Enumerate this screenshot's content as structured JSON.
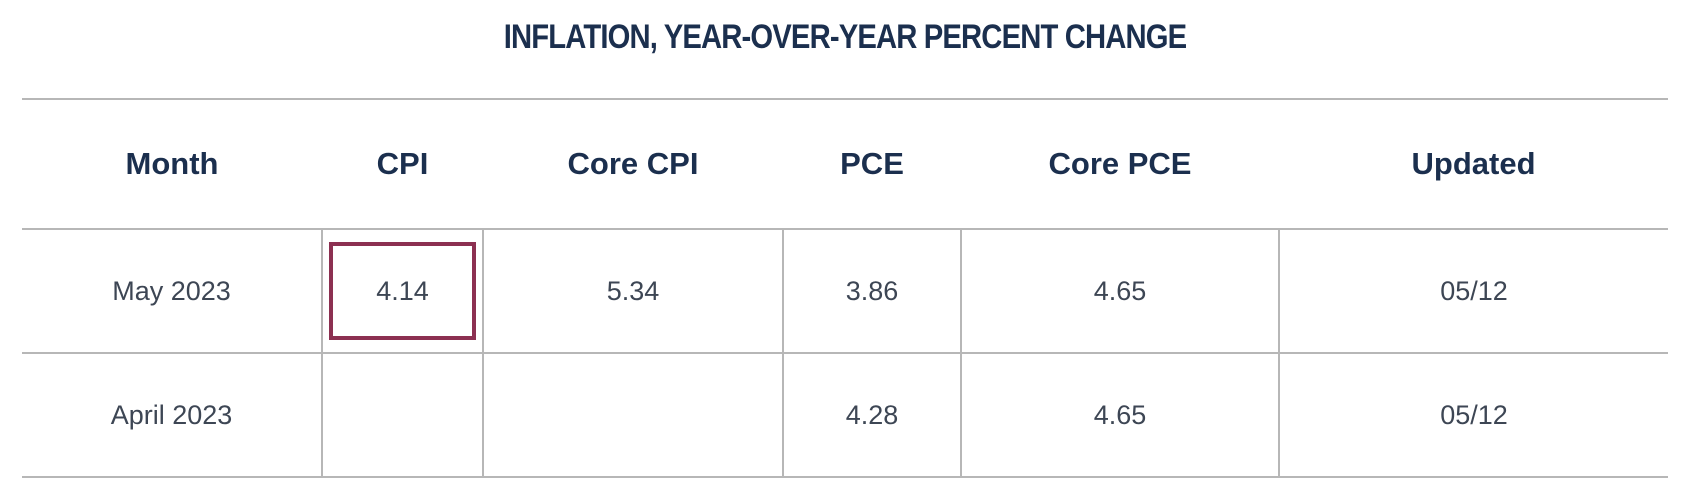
{
  "title": "INFLATION, YEAR-OVER-YEAR PERCENT CHANGE",
  "colors": {
    "heading": "#1b2f4e",
    "text": "#3d4654",
    "rule": "#b7b7b7",
    "highlight": "#8c3051"
  },
  "table": {
    "headers": [
      "Month",
      "CPI",
      "Core CPI",
      "PCE",
      "Core PCE",
      "Updated"
    ],
    "rows": [
      [
        "May 2023",
        "4.14",
        "5.34",
        "3.86",
        "4.65",
        "05/12"
      ],
      [
        "April 2023",
        "",
        "",
        "4.28",
        "4.65",
        "05/12"
      ]
    ],
    "highlighted_cell": "4.14"
  }
}
